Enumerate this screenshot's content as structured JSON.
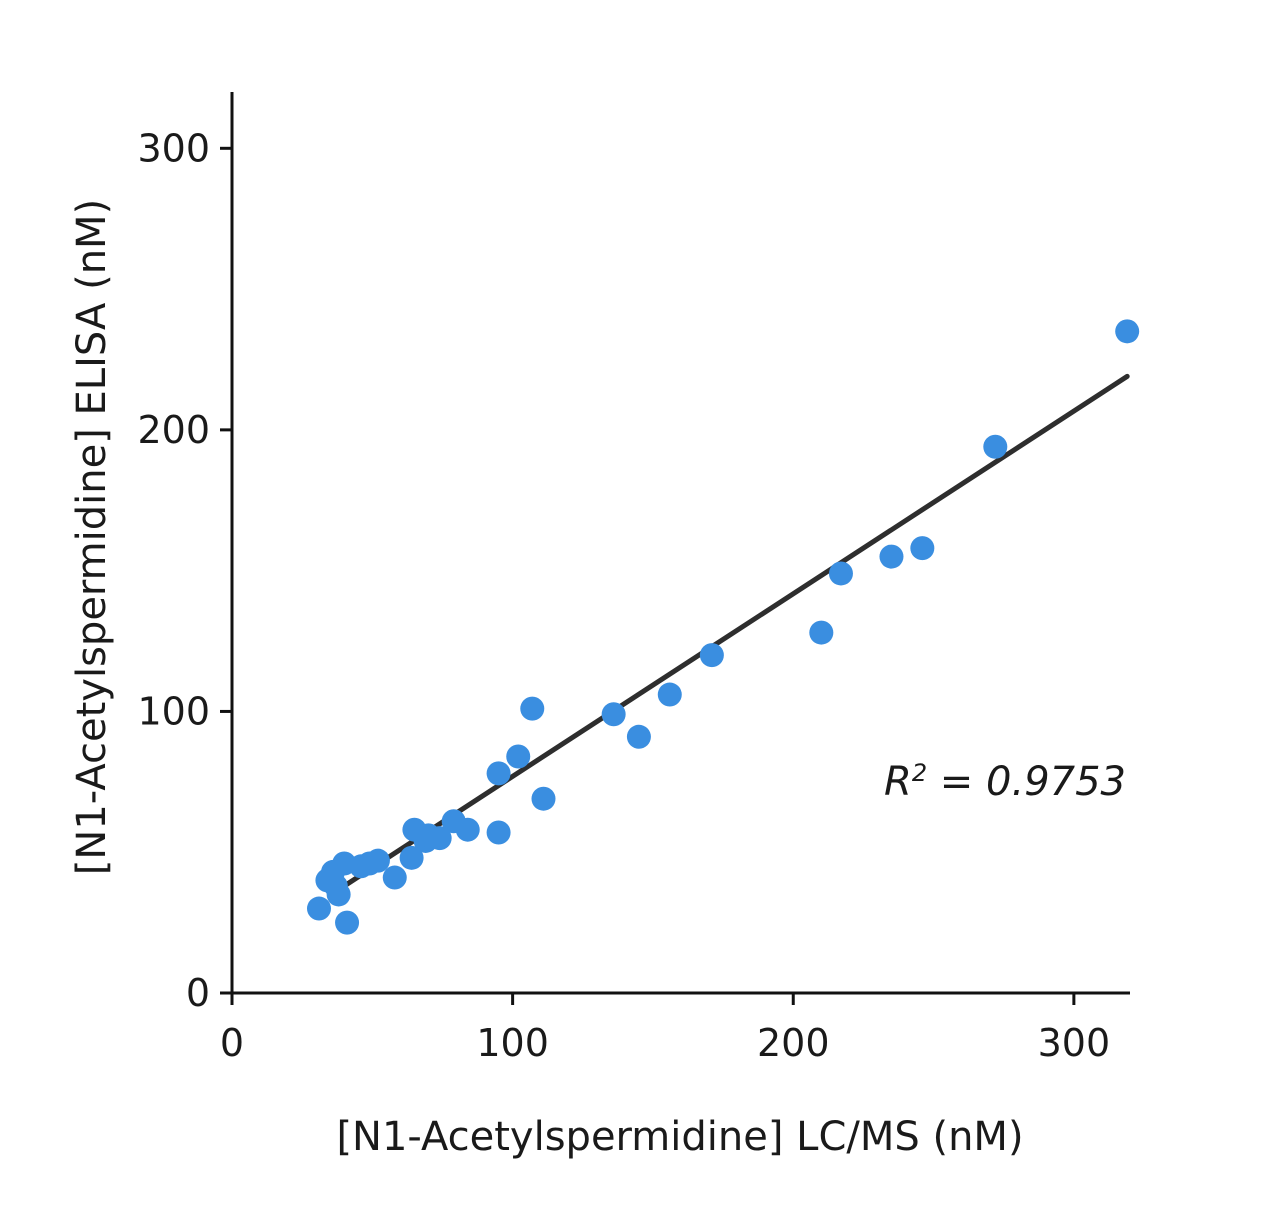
{
  "chart_data": {
    "type": "scatter",
    "title": "",
    "xlabel": "[N1-Acetylspermidine] LC/MS (nM)",
    "ylabel": "[N1-Acetylspermidine] ELISA (nM)",
    "xlim": [
      0,
      320
    ],
    "ylim": [
      0,
      320
    ],
    "xticks": [
      "0",
      "100",
      "200",
      "300"
    ],
    "yticks": [
      "0",
      "100",
      "200",
      "300"
    ],
    "grid": false,
    "point_color": "#3a8ee0",
    "line_color": "#2e2e2e",
    "annotation": {
      "label": "R",
      "superscript": "2",
      "rest": " = 0.9753"
    },
    "fit_line": {
      "x": [
        40,
        319
      ],
      "y": [
        38,
        219
      ]
    },
    "points": [
      {
        "x": 31,
        "y": 30
      },
      {
        "x": 34,
        "y": 40
      },
      {
        "x": 36,
        "y": 43
      },
      {
        "x": 37,
        "y": 38
      },
      {
        "x": 38,
        "y": 35
      },
      {
        "x": 40,
        "y": 46
      },
      {
        "x": 41,
        "y": 25
      },
      {
        "x": 46,
        "y": 45
      },
      {
        "x": 49,
        "y": 46
      },
      {
        "x": 52,
        "y": 47
      },
      {
        "x": 58,
        "y": 41
      },
      {
        "x": 64,
        "y": 48
      },
      {
        "x": 65,
        "y": 58
      },
      {
        "x": 69,
        "y": 54
      },
      {
        "x": 70,
        "y": 56
      },
      {
        "x": 74,
        "y": 55
      },
      {
        "x": 79,
        "y": 61
      },
      {
        "x": 84,
        "y": 58
      },
      {
        "x": 95,
        "y": 78
      },
      {
        "x": 95,
        "y": 57
      },
      {
        "x": 102,
        "y": 84
      },
      {
        "x": 107,
        "y": 101
      },
      {
        "x": 111,
        "y": 69
      },
      {
        "x": 136,
        "y": 99
      },
      {
        "x": 145,
        "y": 91
      },
      {
        "x": 156,
        "y": 106
      },
      {
        "x": 171,
        "y": 120
      },
      {
        "x": 210,
        "y": 128
      },
      {
        "x": 217,
        "y": 149
      },
      {
        "x": 235,
        "y": 155
      },
      {
        "x": 246,
        "y": 158
      },
      {
        "x": 272,
        "y": 194
      },
      {
        "x": 319,
        "y": 235
      }
    ]
  }
}
